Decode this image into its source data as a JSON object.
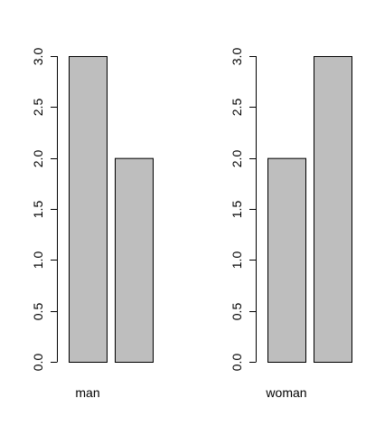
{
  "chart_data": [
    {
      "type": "bar",
      "categories": [
        "",
        ""
      ],
      "values": [
        3,
        2
      ],
      "label": "man",
      "ylim": [
        0,
        3
      ],
      "yticks": [
        "0.0",
        "0.5",
        "1.0",
        "1.5",
        "2.0",
        "2.5",
        "3.0"
      ],
      "grid": false,
      "bar_color": "#bebebe"
    },
    {
      "type": "bar",
      "categories": [
        "",
        ""
      ],
      "values": [
        2,
        3
      ],
      "label": "woman",
      "ylim": [
        0,
        3
      ],
      "yticks": [
        "0.0",
        "0.5",
        "1.0",
        "1.5",
        "2.0",
        "2.5",
        "3.0"
      ],
      "grid": false,
      "bar_color": "#bebebe"
    }
  ]
}
